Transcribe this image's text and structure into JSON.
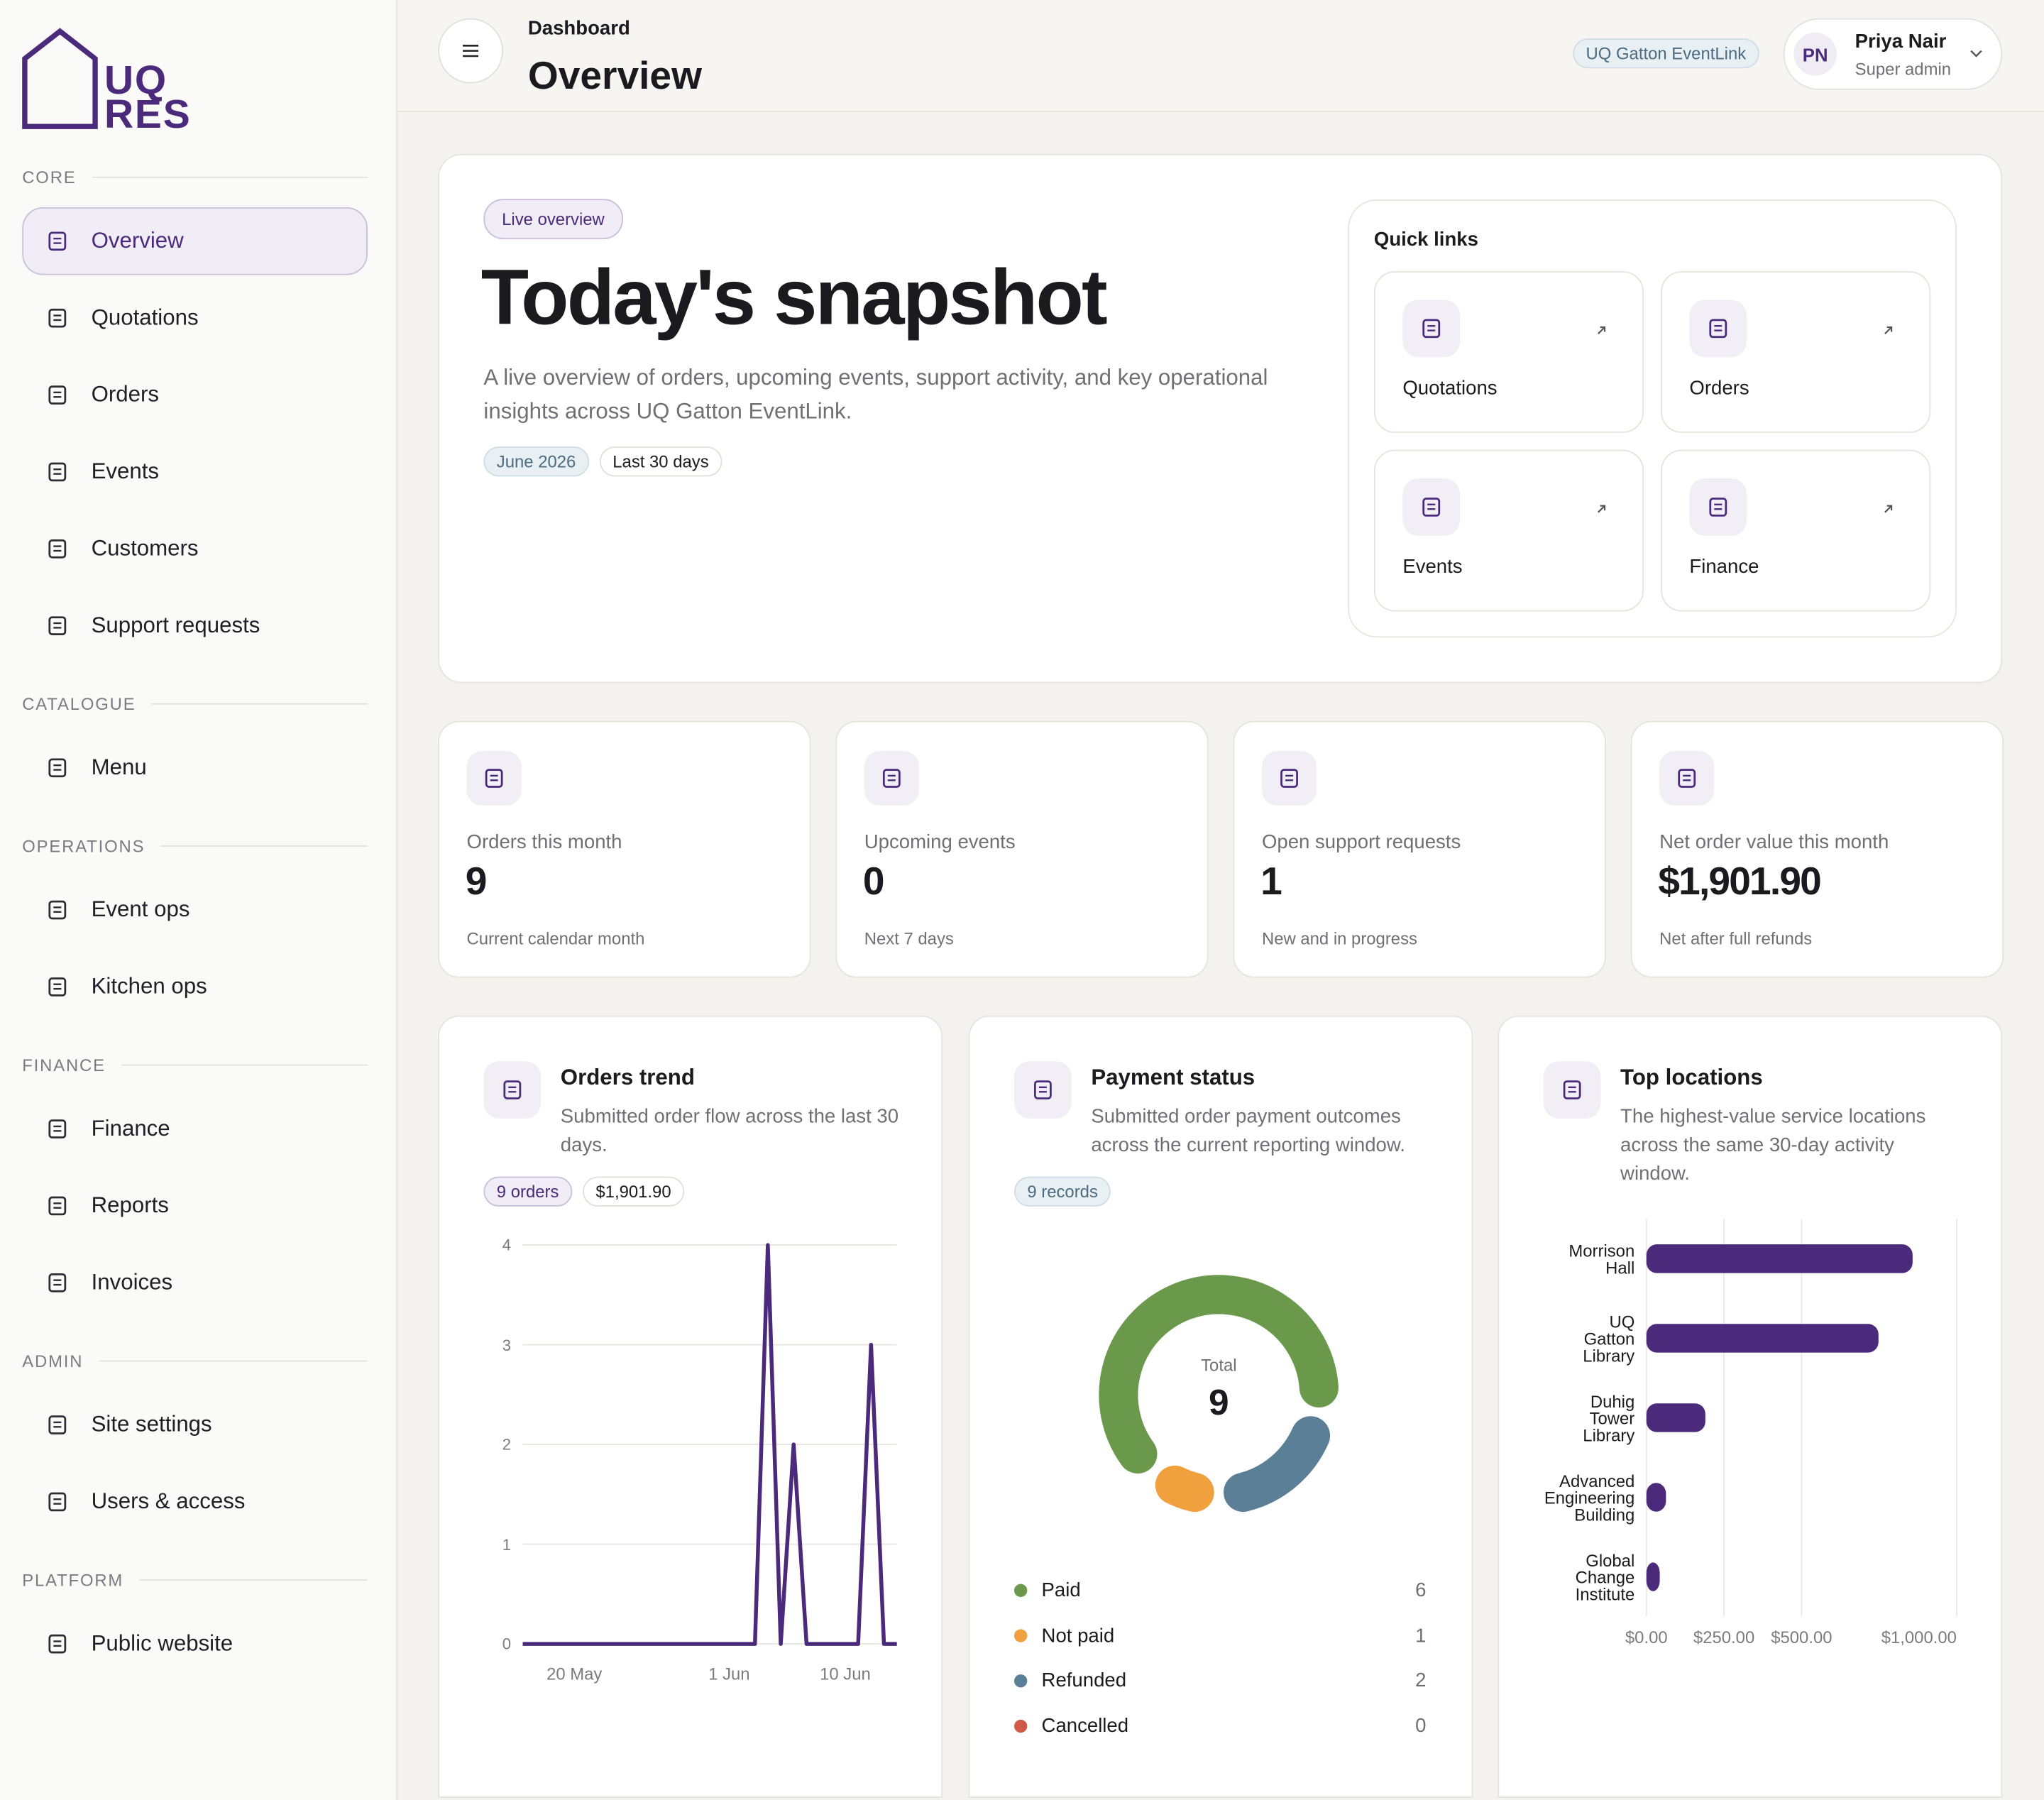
{
  "sidebar": {
    "logo": {
      "line1": "UQ",
      "line2": "RES"
    },
    "sections": [
      {
        "title": "CORE",
        "items": [
          "Overview",
          "Quotations",
          "Orders",
          "Events",
          "Customers",
          "Support requests"
        ]
      },
      {
        "title": "CATALOGUE",
        "items": [
          "Menu"
        ]
      },
      {
        "title": "OPERATIONS",
        "items": [
          "Event ops",
          "Kitchen ops"
        ]
      },
      {
        "title": "FINANCE",
        "items": [
          "Finance",
          "Reports",
          "Invoices"
        ]
      },
      {
        "title": "ADMIN",
        "items": [
          "Site settings",
          "Users & access"
        ]
      },
      {
        "title": "PLATFORM",
        "items": [
          "Public website"
        ]
      }
    ]
  },
  "header": {
    "breadcrumb": "Dashboard",
    "title": "Overview",
    "site": "UQ Gatton EventLink",
    "user": {
      "initials": "PN",
      "name": "Priya Nair",
      "role": "Super admin"
    }
  },
  "hero": {
    "badge": "Live overview",
    "title": "Today's snapshot",
    "description": "A live overview of orders, upcoming events, support activity, and key operational insights across UQ Gatton EventLink.",
    "tags": [
      "June 2026",
      "Last 30 days"
    ],
    "quick_links": {
      "title": "Quick links",
      "items": [
        "Quotations",
        "Orders",
        "Events",
        "Finance"
      ]
    }
  },
  "stats": [
    {
      "label": "Orders this month",
      "value": "9",
      "note": "Current calendar month"
    },
    {
      "label": "Upcoming events",
      "value": "0",
      "note": "Next 7 days"
    },
    {
      "label": "Open support requests",
      "value": "1",
      "note": "New and in progress"
    },
    {
      "label": "Net order value this month",
      "value": "$1,901.90",
      "note": "Net after full refunds"
    }
  ],
  "chart_data": [
    {
      "type": "line",
      "title": "Orders trend",
      "subtitle": "Submitted order flow across the last 30 days.",
      "tags": [
        "9 orders",
        "$1,901.90"
      ],
      "x": [
        "16 May",
        "17 May",
        "18 May",
        "19 May",
        "20 May",
        "21 May",
        "22 May",
        "23 May",
        "24 May",
        "25 May",
        "26 May",
        "27 May",
        "28 May",
        "29 May",
        "30 May",
        "31 May",
        "1 Jun",
        "2 Jun",
        "3 Jun",
        "4 Jun",
        "5 Jun",
        "6 Jun",
        "7 Jun",
        "8 Jun",
        "9 Jun",
        "10 Jun",
        "11 Jun",
        "12 Jun",
        "13 Jun",
        "14 Jun"
      ],
      "values": [
        0,
        0,
        0,
        0,
        0,
        0,
        0,
        0,
        0,
        0,
        0,
        0,
        0,
        0,
        0,
        0,
        0,
        0,
        0,
        4,
        0,
        2,
        0,
        0,
        0,
        0,
        0,
        3,
        0,
        0
      ],
      "xticks": [
        "20 May",
        "1 Jun",
        "10 Jun"
      ],
      "ylim": [
        0,
        4
      ],
      "yticks": [
        0,
        1,
        2,
        3,
        4
      ],
      "color": "#4b2a7c",
      "grid": true
    },
    {
      "type": "donut",
      "title": "Payment status",
      "subtitle": "Submitted order payment outcomes across the current reporting window.",
      "tags": [
        "9 records"
      ],
      "center_label": "Total",
      "center_value": 9,
      "categories": [
        "Paid",
        "Not paid",
        "Refunded",
        "Cancelled"
      ],
      "values": [
        6,
        1,
        2,
        0
      ],
      "colors": [
        "#6b994c",
        "#f0a03c",
        "#5b7f96",
        "#cf5a48"
      ]
    },
    {
      "type": "hbar",
      "title": "Top locations",
      "subtitle": "The highest-value service locations across the same 30-day activity window.",
      "categories": [
        "Morrison Hall",
        "UQ Gatton Library",
        "Duhig Tower Library",
        "Advanced Engineering Building",
        "Global Change Institute"
      ],
      "values": [
        858,
        748,
        190,
        63,
        43
      ],
      "xlim": [
        0,
        1000
      ],
      "xticks": [
        {
          "value": 0,
          "label": "$0.00"
        },
        {
          "value": 250,
          "label": "$250.00"
        },
        {
          "value": 500,
          "label": "$500.00"
        },
        {
          "value": 1000,
          "label": "$1,000.00"
        }
      ],
      "color": "#4b2a7c",
      "grid": true
    }
  ]
}
